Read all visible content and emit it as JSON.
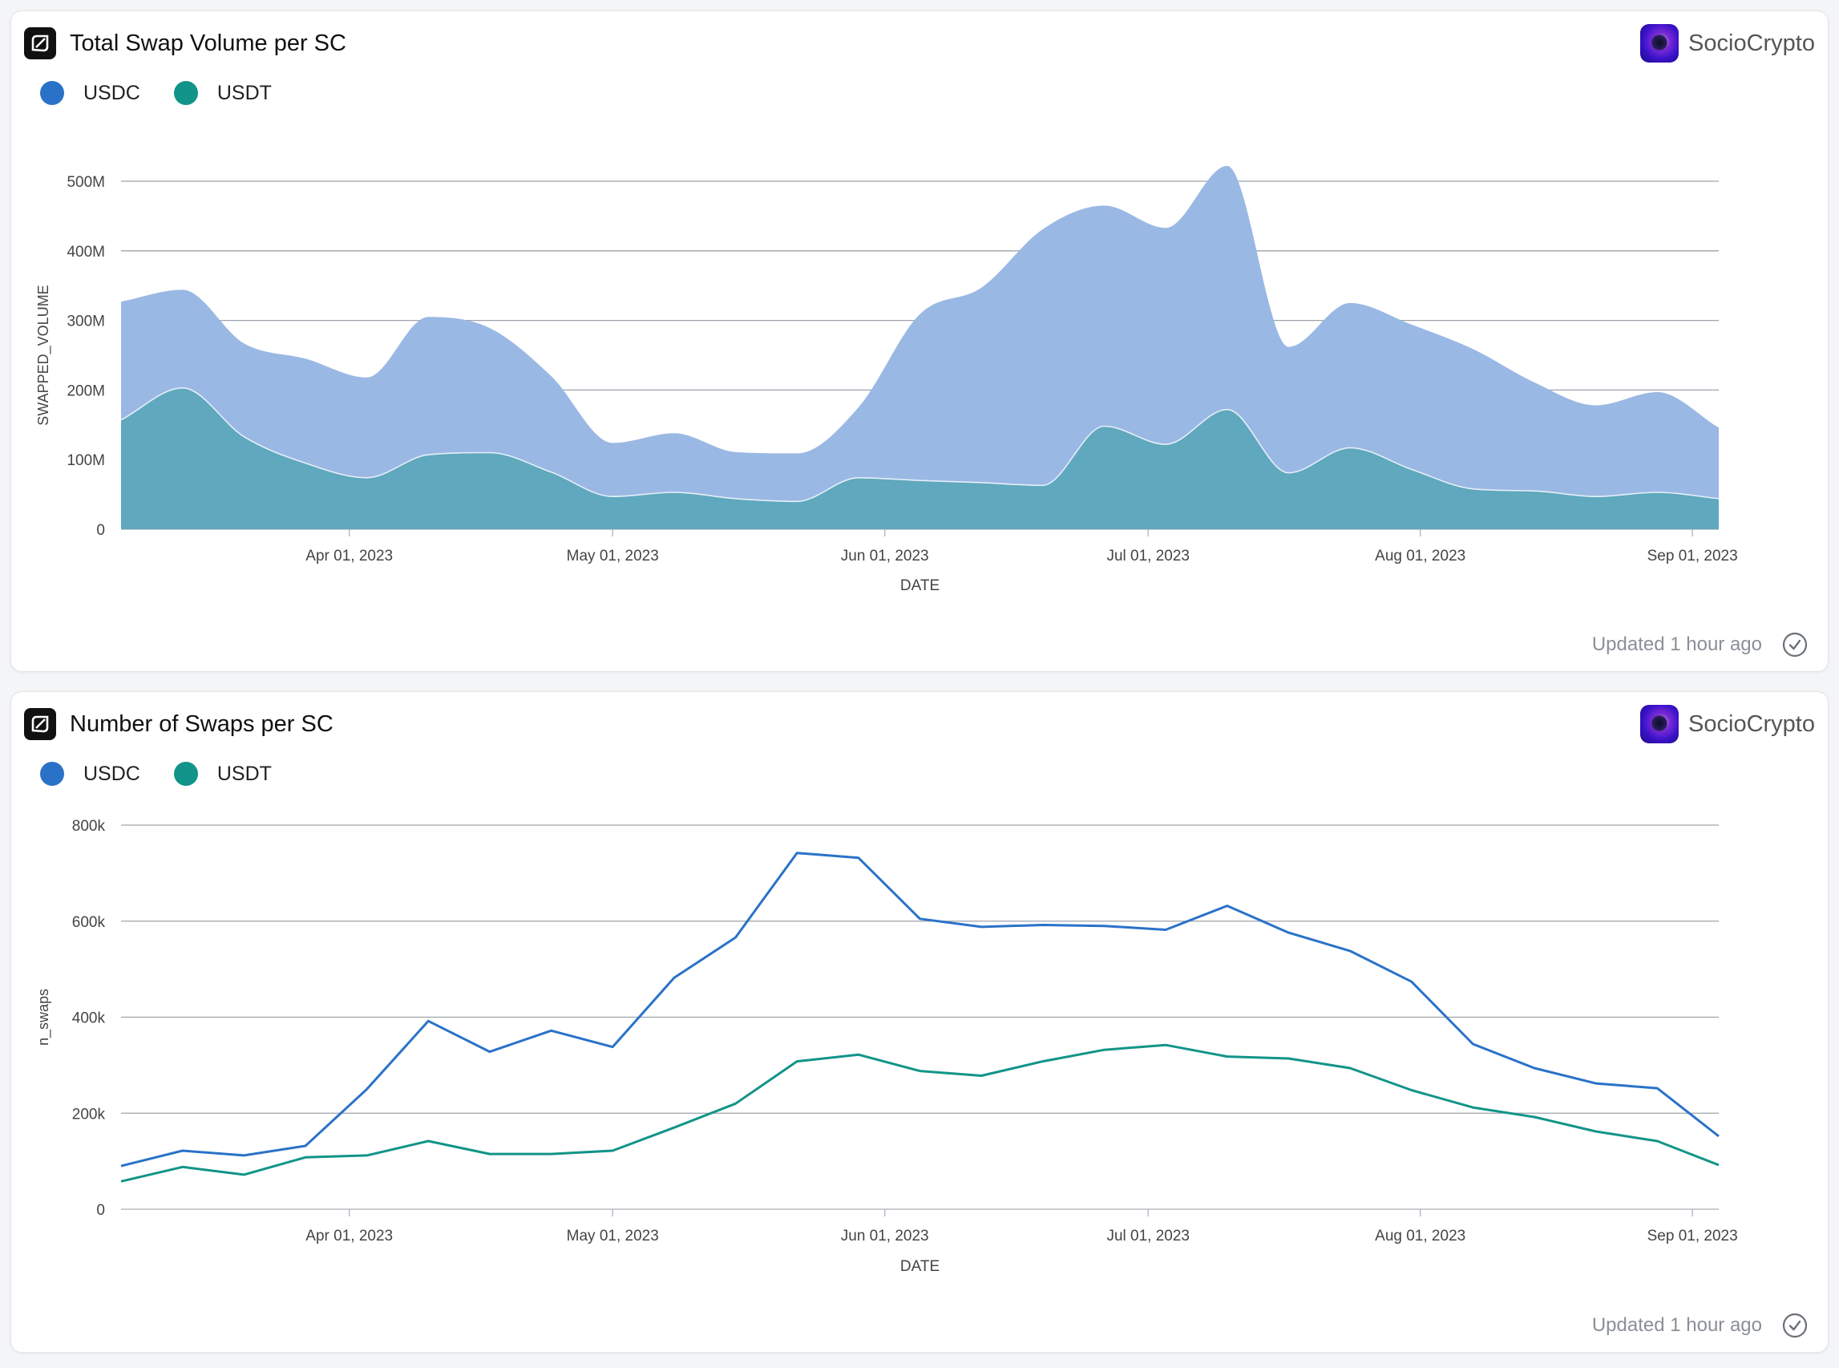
{
  "colors": {
    "usdc_fill": "#9ab8e4",
    "usdt_fill": "#5fa8bd",
    "usdc_line": "#2a72c8",
    "usdt_line": "#119489",
    "grid": "#9ea3aa",
    "tick_text": "#444444"
  },
  "brand": {
    "name": "SocioCrypto"
  },
  "footer": {
    "updated": "Updated 1 hour ago"
  },
  "charts": [
    {
      "title": "Total Swap Volume per SC",
      "legend": [
        {
          "label": "USDC",
          "color": "#2a72c8"
        },
        {
          "label": "USDT",
          "color": "#119489"
        }
      ]
    },
    {
      "title": "Number of Swaps per SC",
      "legend": [
        {
          "label": "USDC",
          "color": "#2a72c8"
        },
        {
          "label": "USDT",
          "color": "#119489"
        }
      ]
    }
  ],
  "chart_data": [
    {
      "type": "area",
      "stacked": true,
      "title": "Total Swap Volume per SC",
      "xlabel": "DATE",
      "ylabel": "SWAPPED_VOLUME",
      "x_tick_labels": [
        "Apr 01, 2023",
        "May 01, 2023",
        "Jun 01, 2023",
        "Jul 01, 2023",
        "Aug 01, 2023",
        "Sep 01, 2023"
      ],
      "x_tick_dates": [
        "2023-04-01",
        "2023-05-01",
        "2023-06-01",
        "2023-07-01",
        "2023-08-01",
        "2023-09-01"
      ],
      "xlim": [
        "2023-03-06",
        "2023-09-04"
      ],
      "y_tick_labels": [
        "0",
        "100M",
        "200M",
        "300M",
        "400M",
        "500M"
      ],
      "y_tick_values": [
        0,
        100000000,
        200000000,
        300000000,
        400000000,
        500000000
      ],
      "ylim": [
        0,
        500000000
      ],
      "grid": true,
      "legend_position": "top-left",
      "x": [
        "2023-03-06",
        "2023-03-13",
        "2023-03-20",
        "2023-03-27",
        "2023-04-03",
        "2023-04-10",
        "2023-04-17",
        "2023-04-24",
        "2023-05-01",
        "2023-05-08",
        "2023-05-15",
        "2023-05-22",
        "2023-05-29",
        "2023-06-05",
        "2023-06-12",
        "2023-06-19",
        "2023-06-26",
        "2023-07-03",
        "2023-07-10",
        "2023-07-17",
        "2023-07-24",
        "2023-07-31",
        "2023-08-07",
        "2023-08-14",
        "2023-08-21",
        "2023-08-28",
        "2023-09-04"
      ],
      "series": [
        {
          "name": "USDT",
          "values": [
            157000000,
            203000000,
            133000000,
            95000000,
            74000000,
            107000000,
            110000000,
            82000000,
            47000000,
            53000000,
            44000000,
            40000000,
            74000000,
            70000000,
            67000000,
            63000000,
            148000000,
            122000000,
            172000000,
            81000000,
            117000000,
            86000000,
            58000000,
            55000000,
            47000000,
            53000000,
            44000000
          ]
        },
        {
          "name": "USDC",
          "values": [
            170000000,
            141000000,
            134000000,
            150000000,
            144000000,
            198000000,
            179000000,
            138000000,
            77000000,
            85000000,
            67000000,
            69000000,
            101000000,
            239000000,
            280000000,
            368000000,
            317000000,
            311000000,
            350000000,
            181000000,
            208000000,
            208000000,
            201000000,
            156000000,
            131000000,
            144000000,
            102000000
          ]
        }
      ]
    },
    {
      "type": "line",
      "title": "Number of Swaps per SC",
      "xlabel": "DATE",
      "ylabel": "n_swaps",
      "x_tick_labels": [
        "Apr 01, 2023",
        "May 01, 2023",
        "Jun 01, 2023",
        "Jul 01, 2023",
        "Aug 01, 2023",
        "Sep 01, 2023"
      ],
      "x_tick_dates": [
        "2023-04-01",
        "2023-05-01",
        "2023-06-01",
        "2023-07-01",
        "2023-08-01",
        "2023-09-01"
      ],
      "xlim": [
        "2023-03-06",
        "2023-09-04"
      ],
      "y_tick_labels": [
        "0",
        "200k",
        "400k",
        "600k",
        "800k"
      ],
      "y_tick_values": [
        0,
        200000,
        400000,
        600000,
        800000
      ],
      "ylim": [
        0,
        800000
      ],
      "grid": true,
      "legend_position": "top-left",
      "x": [
        "2023-03-06",
        "2023-03-13",
        "2023-03-20",
        "2023-03-27",
        "2023-04-03",
        "2023-04-10",
        "2023-04-17",
        "2023-04-24",
        "2023-05-01",
        "2023-05-08",
        "2023-05-15",
        "2023-05-22",
        "2023-05-29",
        "2023-06-05",
        "2023-06-12",
        "2023-06-19",
        "2023-06-26",
        "2023-07-03",
        "2023-07-10",
        "2023-07-17",
        "2023-07-24",
        "2023-07-31",
        "2023-08-07",
        "2023-08-14",
        "2023-08-21",
        "2023-08-28",
        "2023-09-04"
      ],
      "series": [
        {
          "name": "USDC",
          "values": [
            90000,
            122000,
            112000,
            132000,
            250000,
            392000,
            328000,
            372000,
            338000,
            482000,
            566000,
            742000,
            732000,
            605000,
            588000,
            592000,
            590000,
            582000,
            632000,
            576000,
            538000,
            474000,
            344000,
            294000,
            262000,
            252000,
            152000
          ]
        },
        {
          "name": "USDT",
          "values": [
            58000,
            88000,
            72000,
            108000,
            112000,
            142000,
            115000,
            115000,
            122000,
            170000,
            220000,
            308000,
            322000,
            288000,
            278000,
            308000,
            332000,
            342000,
            318000,
            314000,
            294000,
            248000,
            212000,
            192000,
            162000,
            142000,
            92000
          ]
        }
      ]
    }
  ]
}
